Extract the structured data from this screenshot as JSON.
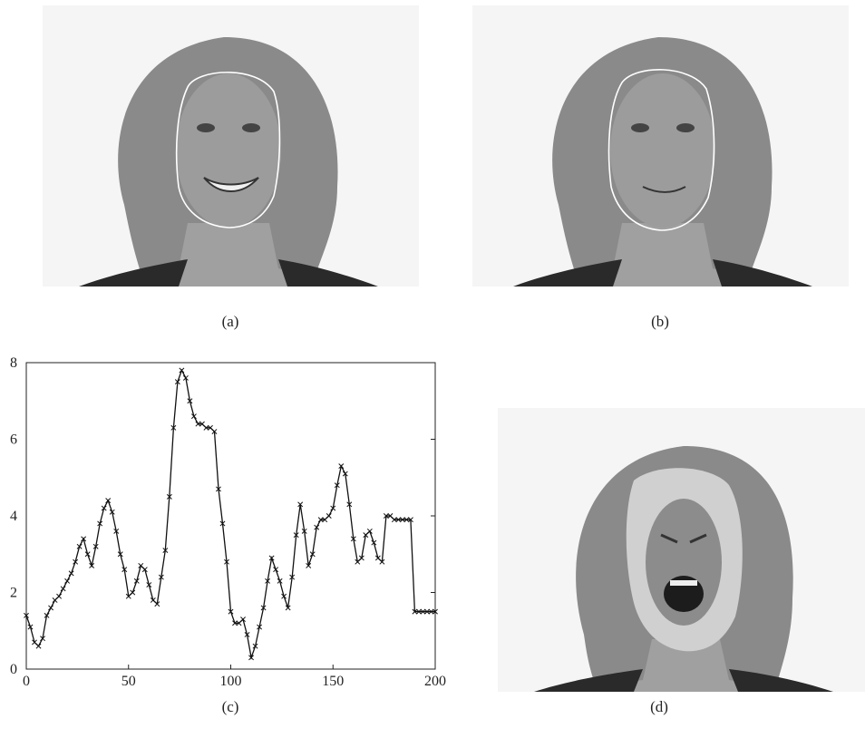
{
  "captions": {
    "a": "(a)",
    "b": "(b)",
    "c": "(c)",
    "d": "(d)"
  },
  "photos": {
    "a": {
      "subject": "face-smiling-with-contour",
      "contour_color": "#ffffff"
    },
    "b": {
      "subject": "face-neutral-with-contour",
      "contour_color": "#ffffff"
    },
    "d": {
      "subject": "face-screaming-with-region-overlay",
      "overlay_color": "#d0d0d0"
    }
  },
  "chart_data": {
    "type": "line",
    "marker": "x",
    "line_color": "#111111",
    "grid": false,
    "xlim": [
      0,
      200
    ],
    "ylim": [
      0,
      8
    ],
    "xticks": [
      0,
      50,
      100,
      150,
      200
    ],
    "yticks": [
      0,
      2,
      4,
      6,
      8
    ],
    "x": [
      0,
      2,
      4,
      6,
      8,
      10,
      12,
      14,
      16,
      18,
      20,
      22,
      24,
      26,
      28,
      30,
      32,
      34,
      36,
      38,
      40,
      42,
      44,
      46,
      48,
      50,
      52,
      54,
      56,
      58,
      60,
      62,
      64,
      66,
      68,
      70,
      72,
      74,
      76,
      78,
      80,
      82,
      84,
      86,
      88,
      90,
      92,
      94,
      96,
      98,
      100,
      102,
      104,
      106,
      108,
      110,
      112,
      114,
      116,
      118,
      120,
      122,
      124,
      126,
      128,
      130,
      132,
      134,
      136,
      138,
      140,
      142,
      144,
      146,
      148,
      150,
      152,
      154,
      156,
      158,
      160,
      162,
      164,
      166,
      168,
      170,
      172,
      174,
      176,
      178,
      180,
      182,
      184,
      186,
      188,
      190,
      192,
      194,
      196,
      198,
      200
    ],
    "y": [
      1.4,
      1.1,
      0.7,
      0.6,
      0.8,
      1.4,
      1.6,
      1.8,
      1.9,
      2.1,
      2.3,
      2.5,
      2.8,
      3.2,
      3.4,
      3.0,
      2.7,
      3.2,
      3.8,
      4.2,
      4.4,
      4.1,
      3.6,
      3.0,
      2.6,
      1.9,
      2.0,
      2.3,
      2.7,
      2.6,
      2.2,
      1.8,
      1.7,
      2.4,
      3.1,
      4.5,
      6.3,
      7.5,
      7.8,
      7.6,
      7.0,
      6.6,
      6.4,
      6.4,
      6.3,
      6.3,
      6.2,
      4.7,
      3.8,
      2.8,
      1.5,
      1.2,
      1.2,
      1.3,
      0.9,
      0.3,
      0.6,
      1.1,
      1.6,
      2.3,
      2.9,
      2.6,
      2.3,
      1.9,
      1.6,
      2.4,
      3.5,
      4.3,
      3.6,
      2.7,
      3.0,
      3.7,
      3.9,
      3.9,
      4.0,
      4.2,
      4.8,
      5.3,
      5.1,
      4.3,
      3.4,
      2.8,
      2.9,
      3.5,
      3.6,
      3.3,
      2.9,
      2.8,
      4.0,
      4.0,
      3.9,
      3.9,
      3.9,
      3.9,
      3.9,
      1.5,
      1.5,
      1.5,
      1.5,
      1.5,
      1.5
    ]
  }
}
